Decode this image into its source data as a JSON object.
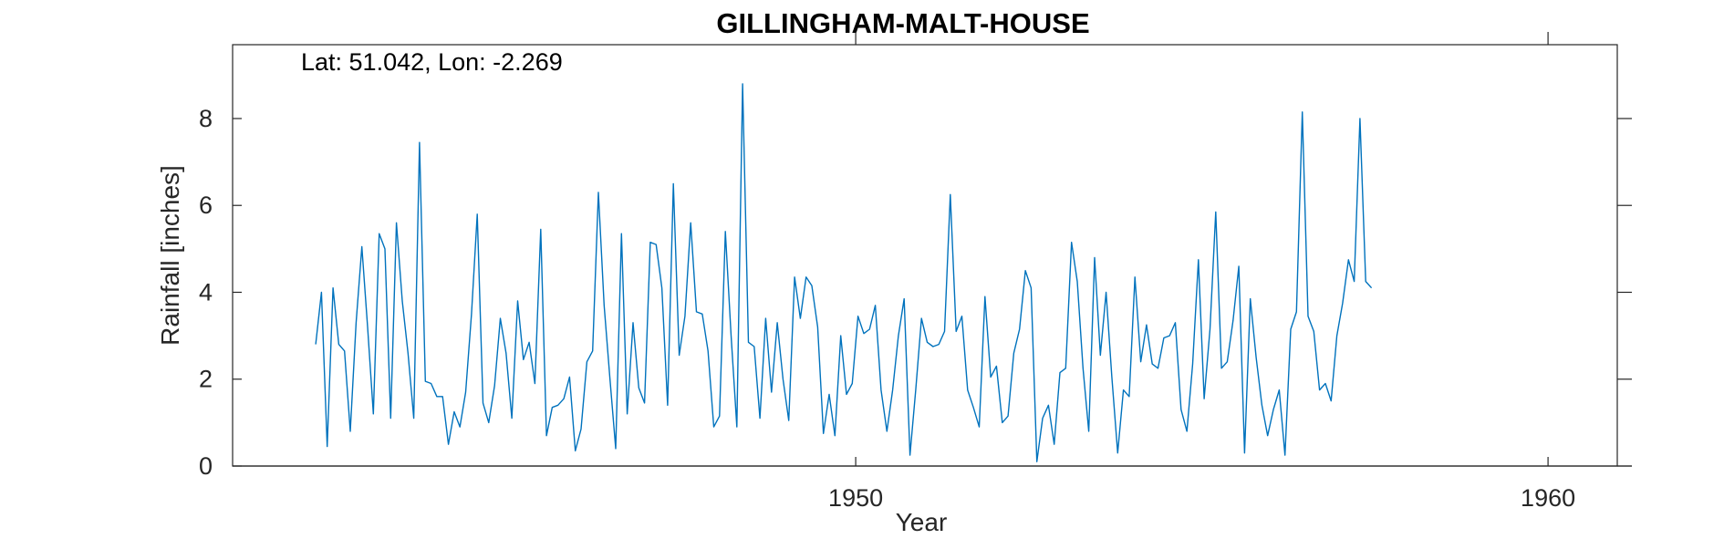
{
  "chart_data": {
    "type": "line",
    "title": "GILLINGHAM-MALT-HOUSE",
    "annotation": "Lat: 51.042, Lon: -2.269",
    "xlabel": "Year",
    "ylabel": "Rainfall [inches]",
    "xlim": [
      1941.0,
      1961.0
    ],
    "ylim": [
      0,
      9.7
    ],
    "xticks": [
      1950,
      1960
    ],
    "yticks": [
      0,
      2,
      4,
      6,
      8
    ],
    "grid": false,
    "series": [
      {
        "color": "#0072bd",
        "x_start": 1942.2,
        "x_step": 0.0833333,
        "values": [
          2.8,
          4.0,
          0.45,
          4.1,
          2.8,
          2.65,
          0.8,
          3.3,
          5.05,
          3.2,
          1.2,
          5.35,
          5.0,
          1.1,
          5.6,
          3.8,
          2.6,
          1.1,
          7.45,
          1.95,
          1.9,
          1.6,
          1.6,
          0.5,
          1.25,
          0.9,
          1.7,
          3.5,
          5.8,
          1.45,
          1.0,
          1.85,
          3.4,
          2.6,
          1.1,
          3.8,
          2.45,
          2.85,
          1.9,
          5.45,
          0.7,
          1.35,
          1.4,
          1.55,
          2.05,
          0.35,
          0.85,
          2.4,
          2.65,
          6.3,
          3.7,
          2.0,
          0.4,
          5.35,
          1.2,
          3.3,
          1.8,
          1.45,
          5.15,
          5.1,
          4.1,
          1.4,
          6.5,
          2.55,
          3.45,
          5.6,
          3.55,
          3.5,
          2.65,
          0.9,
          1.15,
          5.4,
          3.0,
          0.9,
          8.8,
          2.85,
          2.75,
          1.1,
          3.4,
          1.7,
          3.3,
          2.0,
          1.05,
          4.35,
          3.4,
          4.35,
          4.15,
          3.2,
          0.75,
          1.65,
          0.7,
          3.0,
          1.65,
          1.9,
          3.45,
          3.05,
          3.15,
          3.7,
          1.75,
          0.8,
          1.75,
          3.0,
          3.85,
          0.25,
          1.75,
          3.4,
          2.85,
          2.75,
          2.8,
          3.1,
          6.25,
          3.1,
          3.45,
          1.75,
          1.35,
          0.9,
          3.9,
          2.05,
          2.3,
          1.0,
          1.15,
          2.6,
          3.15,
          4.5,
          4.1,
          0.1,
          1.1,
          1.4,
          0.5,
          2.15,
          2.25,
          5.15,
          4.25,
          2.25,
          0.8,
          4.8,
          2.55,
          4.0,
          2.05,
          0.3,
          1.75,
          1.6,
          4.35,
          2.4,
          3.25,
          2.35,
          2.25,
          2.95,
          3.0,
          3.3,
          1.3,
          0.8,
          2.35,
          4.75,
          1.55,
          3.15,
          5.85,
          2.25,
          2.4,
          3.35,
          4.6,
          0.3,
          3.85,
          2.5,
          1.4,
          0.7,
          1.3,
          1.75,
          0.25,
          3.15,
          3.55,
          8.15,
          3.45,
          3.1,
          1.75,
          1.9,
          1.5,
          3.0,
          3.75,
          4.75,
          4.25,
          8.0,
          4.25,
          4.1
        ]
      }
    ]
  }
}
